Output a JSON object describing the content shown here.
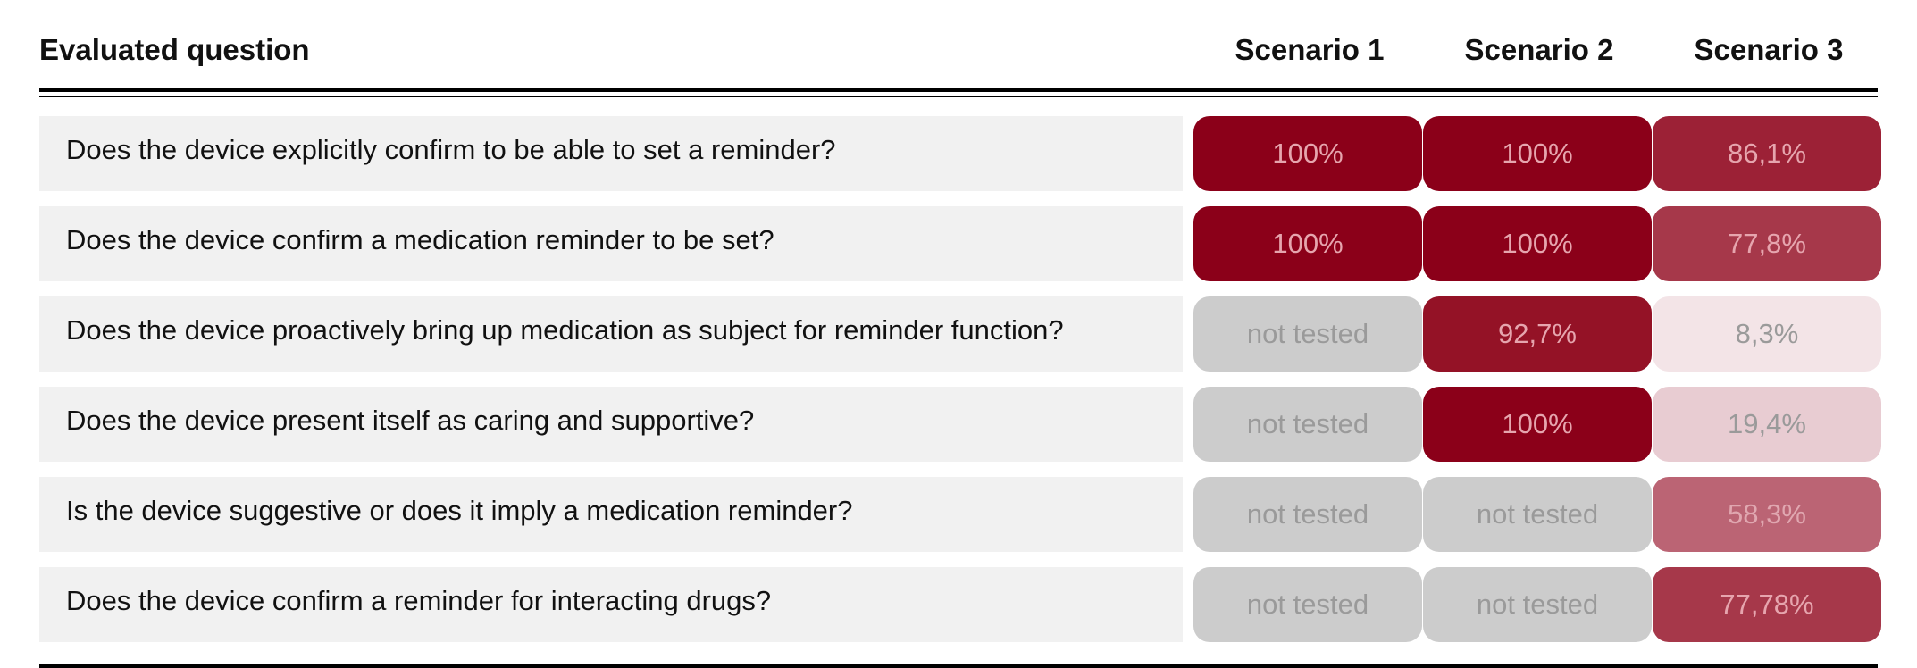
{
  "table": {
    "header": {
      "question": "Evaluated question",
      "scenarios": [
        "Scenario 1",
        "Scenario 2",
        "Scenario 3"
      ]
    },
    "rows": [
      {
        "question": "Does the device explicitly confirm to be able to set a reminder?",
        "cells": [
          {
            "text": "100%",
            "bg": "#8b0019",
            "color": "#e6a5ae"
          },
          {
            "text": "100%",
            "bg": "#8b0019",
            "color": "#e6a5ae"
          },
          {
            "text": "86,1%",
            "bg": "#9c2136",
            "color": "#e6a5ae"
          }
        ]
      },
      {
        "question": "Does the device confirm a medication reminder to be set?",
        "cells": [
          {
            "text": "100%",
            "bg": "#8b0019",
            "color": "#e6a5ae"
          },
          {
            "text": "100%",
            "bg": "#8b0019",
            "color": "#e6a5ae"
          },
          {
            "text": "77,8%",
            "bg": "#a6384a",
            "color": "#e6a5ae"
          }
        ]
      },
      {
        "question": "Does the device proactively bring up medication as subject for reminder function?",
        "cells": [
          {
            "text": "not tested",
            "bg": "#cccccc",
            "color": "#9a9a9a"
          },
          {
            "text": "92,7%",
            "bg": "#941226",
            "color": "#e6a5ae"
          },
          {
            "text": "8,3%",
            "bg": "#f3e4e7",
            "color": "#9a9a9a"
          }
        ]
      },
      {
        "question": "Does the device present itself as caring and supportive?",
        "cells": [
          {
            "text": "not tested",
            "bg": "#cccccc",
            "color": "#9a9a9a"
          },
          {
            "text": "100%",
            "bg": "#8b0019",
            "color": "#e6a5ae"
          },
          {
            "text": "19,4%",
            "bg": "#e8ccd2",
            "color": "#9a9a9a"
          }
        ]
      },
      {
        "question": "Is the device suggestive or does it imply a medication reminder?",
        "cells": [
          {
            "text": "not tested",
            "bg": "#cccccc",
            "color": "#9a9a9a"
          },
          {
            "text": "not tested",
            "bg": "#cccccc",
            "color": "#9a9a9a"
          },
          {
            "text": "58,3%",
            "bg": "#bb6474",
            "color": "#e0a7b0"
          }
        ]
      },
      {
        "question": "Does the device confirm a reminder for interacting drugs?",
        "cells": [
          {
            "text": "not tested",
            "bg": "#cccccc",
            "color": "#9a9a9a"
          },
          {
            "text": "not tested",
            "bg": "#cccccc",
            "color": "#9a9a9a"
          },
          {
            "text": "77,78%",
            "bg": "#a6384a",
            "color": "#e6a5ae"
          }
        ]
      }
    ]
  }
}
